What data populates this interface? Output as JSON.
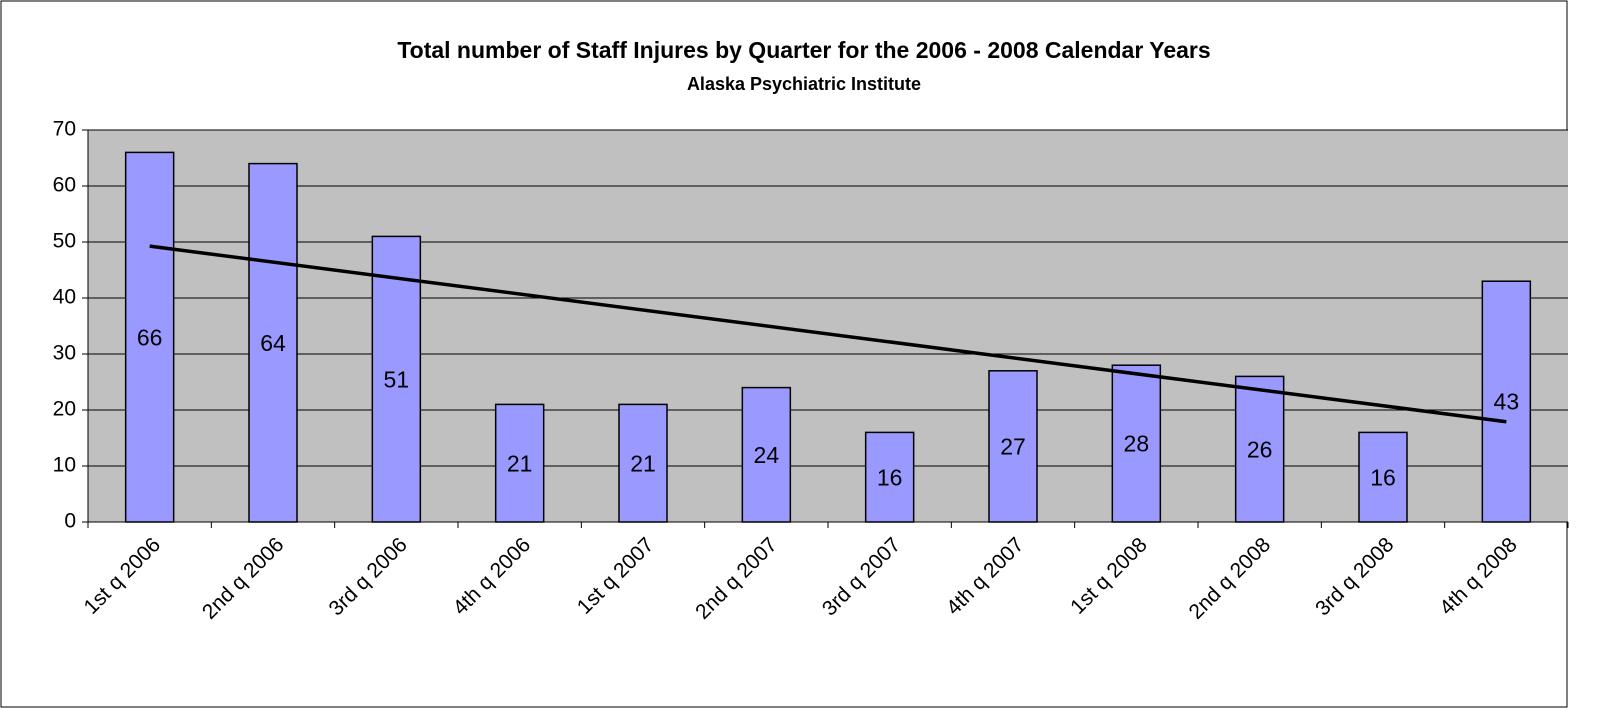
{
  "chart_data": {
    "type": "bar",
    "title": "Total number of Staff Injures by Quarter for the 2006 - 2008 Calendar Years",
    "subtitle": "Alaska Psychiatric Institute",
    "categories": [
      "1st q 2006",
      "2nd q 2006",
      "3rd q 2006",
      "4th q 2006",
      "1st q 2007",
      "2nd q 2007",
      "3rd q 2007",
      "4th q 2007",
      "1st q 2008",
      "2nd q 2008",
      "3rd q 2008",
      "4th q 2008"
    ],
    "values": [
      66,
      64,
      51,
      21,
      21,
      24,
      16,
      27,
      28,
      26,
      16,
      43
    ],
    "color": "#9999ff",
    "ylim": [
      0,
      70
    ],
    "yticks": [
      0,
      10,
      20,
      30,
      40,
      50,
      60,
      70
    ],
    "grid": true,
    "trendline": "linear"
  }
}
